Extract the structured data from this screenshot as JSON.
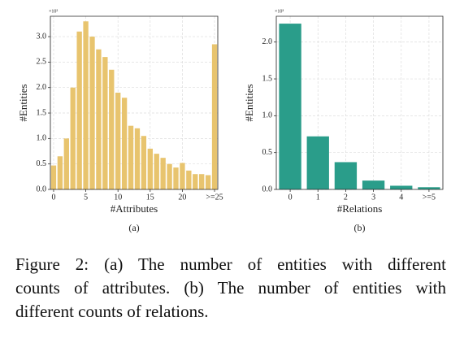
{
  "chart_data": [
    {
      "type": "bar",
      "multiplier": "×10²",
      "xlabel": "#Attributes",
      "ylabel": "#Entities",
      "sublabel": "(a)",
      "categories": [
        "0",
        null,
        null,
        null,
        null,
        "5",
        null,
        null,
        null,
        null,
        "10",
        null,
        null,
        null,
        null,
        "15",
        null,
        null,
        null,
        null,
        "20",
        null,
        null,
        null,
        null,
        ">=25"
      ],
      "values": [
        0.47,
        0.65,
        1.0,
        2.0,
        3.1,
        3.3,
        3.0,
        2.75,
        2.6,
        2.35,
        1.9,
        1.8,
        1.25,
        1.2,
        1.05,
        0.8,
        0.7,
        0.62,
        0.5,
        0.43,
        0.52,
        0.37,
        0.3,
        0.3,
        0.28,
        2.85
      ],
      "color": "#e8c46e",
      "ylim": [
        0,
        3.4
      ],
      "yticks": [
        {
          "value": 0,
          "label": "0.0"
        },
        0.5,
        {
          "value": 1,
          "label": "1.0"
        },
        1.5,
        {
          "value": 2,
          "label": "2.0"
        },
        2.5,
        {
          "value": 3,
          "label": "3.0"
        }
      ],
      "grid": true
    },
    {
      "type": "bar",
      "multiplier": "×10³",
      "xlabel": "#Relations",
      "ylabel": "#Entities",
      "sublabel": "(b)",
      "categories": [
        "0",
        "1",
        "2",
        "3",
        "4",
        ">=5"
      ],
      "values": [
        2.25,
        0.72,
        0.37,
        0.12,
        0.05,
        0.03
      ],
      "color": "#2a9d8a",
      "ylim": [
        0,
        2.35
      ],
      "yticks": [
        {
          "value": 0,
          "label": "0.0"
        },
        0.5,
        {
          "value": 1,
          "label": "1.0"
        },
        1.5,
        {
          "value": 2,
          "label": "2.0"
        }
      ],
      "grid": true
    }
  ],
  "caption_lines": [
    "Figure 2:  (a) The number of entities with different",
    "counts of attributes.  (b) The number of entities with",
    "different counts of relations."
  ]
}
